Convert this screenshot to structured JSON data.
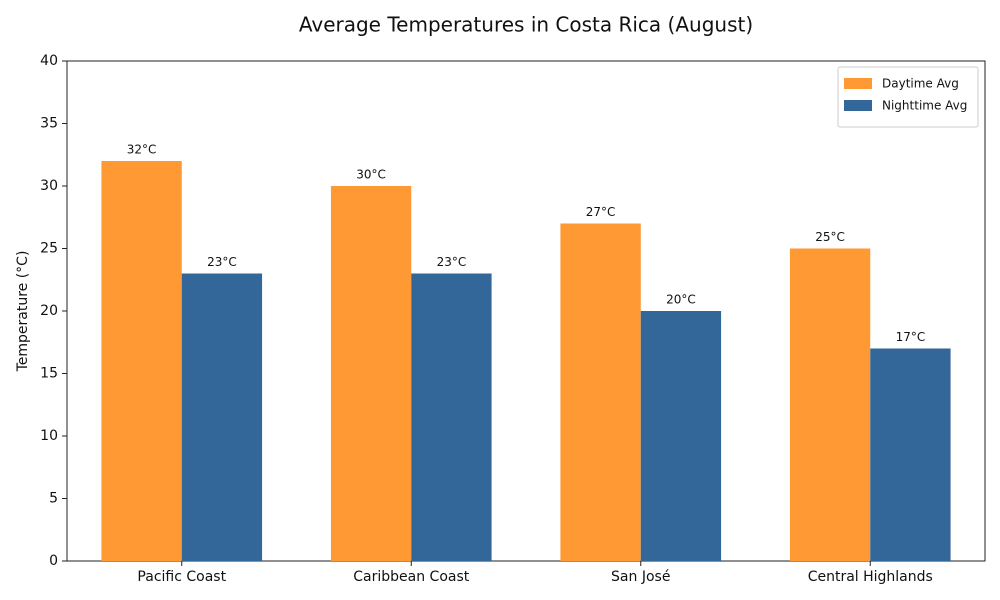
{
  "chart_data": {
    "type": "bar",
    "title": "Average Temperatures in Costa Rica (August)",
    "y_label": "Temperature (°C)",
    "categories": [
      "Pacific Coast",
      "Caribbean Coast",
      "San José",
      "Central Highlands"
    ],
    "series": [
      {
        "name": "Daytime Avg",
        "color": "#ff9933",
        "values": [
          32,
          30,
          27,
          25
        ],
        "value_labels": [
          "32°C",
          "30°C",
          "27°C",
          "25°C"
        ]
      },
      {
        "name": "Nighttime Avg",
        "color": "#336699",
        "values": [
          23,
          23,
          20,
          17
        ],
        "value_labels": [
          "23°C",
          "23°C",
          "20°C",
          "17°C"
        ]
      }
    ],
    "ylim": [
      0,
      40
    ],
    "yticks": [
      0,
      5,
      10,
      15,
      20,
      25,
      30,
      35,
      40
    ],
    "grid": false,
    "legend": "upper right"
  }
}
